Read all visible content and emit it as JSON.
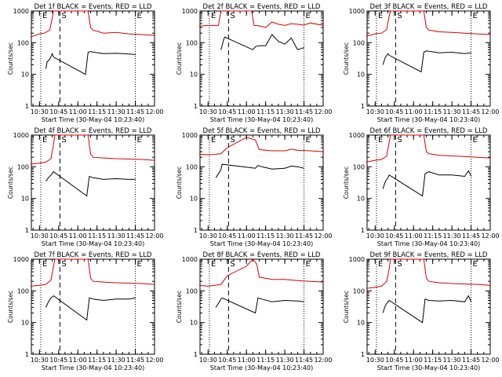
{
  "chart_data": [
    {
      "type": "line",
      "title": "Det 1f BLACK = Events, RED = LLD",
      "xlabel": "Start Time (30-May-04 10:23:40)",
      "ylabel": "Counts/sec",
      "y_scale": "log",
      "ylim": [
        1,
        1000
      ],
      "y_ticks": [
        "1",
        "10",
        "100",
        "1000"
      ],
      "x_ticks": [
        "10:30",
        "10:45",
        "11:00",
        "11:15",
        "11:30",
        "11:45",
        "12:00"
      ],
      "x_range": [
        "10:23:40",
        "12:00:00"
      ],
      "markers": [
        {
          "label": "E",
          "time": "10:31"
        },
        {
          "label": "S",
          "time": "10:46"
        },
        {
          "label": "E",
          "time": "11:45"
        }
      ],
      "series": [
        {
          "name": "Events",
          "color": "#000000",
          "x": [
            "10:35",
            "10:36",
            "10:38",
            "10:40",
            "10:41",
            "11:06",
            "11:08",
            "11:10",
            "11:20",
            "11:30",
            "11:40",
            "11:45"
          ],
          "y": [
            15,
            25,
            30,
            45,
            35,
            10,
            50,
            52,
            45,
            46,
            44,
            42
          ]
        },
        {
          "name": "LLD",
          "color": "#dd0000",
          "x": [
            "10:23",
            "10:30",
            "10:34",
            "10:38",
            "10:40",
            "10:41",
            "10:42",
            "11:08",
            "11:10",
            "11:12",
            "11:20",
            "11:30",
            "11:40",
            "11:50",
            "12:00"
          ],
          "y": [
            150,
            190,
            200,
            250,
            600,
            1000,
            1000,
            1000,
            300,
            250,
            200,
            210,
            190,
            180,
            170
          ]
        }
      ]
    },
    {
      "type": "line",
      "title": "Det 2f BLACK = Events, RED = LLD",
      "xlabel": "Start Time (30-May-04 10:23:40)",
      "ylabel": "Counts/sec",
      "y_scale": "log",
      "ylim": [
        1,
        1000
      ],
      "y_ticks": [
        "1",
        "10",
        "100",
        "1000"
      ],
      "x_ticks": [
        "10:30",
        "10:45",
        "11:00",
        "11:15",
        "11:30",
        "11:45",
        "12:00"
      ],
      "x_range": [
        "10:23:40",
        "12:00:00"
      ],
      "markers": [
        {
          "label": "E",
          "time": "10:31"
        },
        {
          "label": "S",
          "time": "10:46"
        },
        {
          "label": "E",
          "time": "11:45"
        }
      ],
      "series": [
        {
          "name": "Events",
          "color": "#000000",
          "x": [
            "10:40",
            "10:41",
            "10:42",
            "10:43",
            "11:05",
            "11:07",
            "11:10",
            "11:15",
            "11:20",
            "11:25",
            "11:30",
            "11:35",
            "11:40",
            "11:45"
          ],
          "y": [
            60,
            80,
            120,
            150,
            60,
            75,
            80,
            80,
            180,
            110,
            90,
            140,
            60,
            70
          ]
        },
        {
          "name": "LLD",
          "color": "#dd0000",
          "x": [
            "10:23",
            "10:30",
            "10:38",
            "10:40",
            "10:41",
            "11:04",
            "11:06",
            "11:10",
            "11:15",
            "11:20",
            "11:25",
            "11:30",
            "11:35",
            "11:40",
            "11:45",
            "11:50",
            "12:00"
          ],
          "y": [
            330,
            350,
            350,
            1000,
            1000,
            1000,
            350,
            340,
            300,
            450,
            380,
            350,
            400,
            380,
            360,
            420,
            350
          ]
        }
      ]
    },
    {
      "type": "line",
      "title": "Det 3f BLACK = Events, RED = LLD",
      "xlabel": "Start Time (30-May-04 10:23:40)",
      "ylabel": "Counts/sec",
      "y_scale": "log",
      "ylim": [
        1,
        1000
      ],
      "y_ticks": [
        "1",
        "10",
        "100",
        "1000"
      ],
      "x_ticks": [
        "10:30",
        "10:45",
        "11:00",
        "11:15",
        "11:30",
        "11:45",
        "12:00"
      ],
      "x_range": [
        "10:23:40",
        "12:00:00"
      ],
      "markers": [
        {
          "label": "E",
          "time": "10:31"
        },
        {
          "label": "S",
          "time": "10:46"
        },
        {
          "label": "E",
          "time": "11:45"
        }
      ],
      "series": [
        {
          "name": "Events",
          "color": "#000000",
          "x": [
            "10:36",
            "10:38",
            "10:40",
            "10:41",
            "11:06",
            "11:08",
            "11:10",
            "11:20",
            "11:30",
            "11:40",
            "11:45"
          ],
          "y": [
            20,
            35,
            45,
            40,
            12,
            50,
            55,
            48,
            50,
            45,
            48
          ]
        },
        {
          "name": "LLD",
          "color": "#dd0000",
          "x": [
            "10:23",
            "10:30",
            "10:35",
            "10:39",
            "10:41",
            "10:42",
            "11:08",
            "11:10",
            "11:12",
            "11:20",
            "11:30",
            "11:40",
            "11:50",
            "12:00"
          ],
          "y": [
            160,
            190,
            200,
            260,
            700,
            1000,
            1000,
            300,
            250,
            220,
            210,
            200,
            190,
            180
          ]
        }
      ]
    },
    {
      "type": "line",
      "title": "Det 4f BLACK = Events, RED = LLD",
      "xlabel": "Start Time (30-May-04 10:23:40)",
      "ylabel": "Counts/sec",
      "y_scale": "log",
      "ylim": [
        1,
        1000
      ],
      "y_ticks": [
        "1",
        "10",
        "100",
        "1000"
      ],
      "x_ticks": [
        "10:30",
        "10:45",
        "11:00",
        "11:15",
        "11:30",
        "11:45",
        "12:00"
      ],
      "x_range": [
        "10:23:40",
        "12:00:00"
      ],
      "markers": [
        {
          "label": "E",
          "time": "10:31"
        },
        {
          "label": "S",
          "time": "10:46"
        },
        {
          "label": "E",
          "time": "11:45"
        }
      ],
      "series": [
        {
          "name": "Events",
          "color": "#000000",
          "x": [
            "10:35",
            "10:37",
            "10:39",
            "10:41",
            "11:07",
            "11:09",
            "11:12",
            "11:20",
            "11:30",
            "11:40",
            "11:45"
          ],
          "y": [
            35,
            45,
            55,
            70,
            12,
            50,
            45,
            40,
            42,
            40,
            40
          ]
        },
        {
          "name": "LLD",
          "color": "#dd0000",
          "x": [
            "10:23",
            "10:30",
            "10:35",
            "10:39",
            "10:41",
            "10:42",
            "11:08",
            "11:10",
            "11:12",
            "11:20",
            "11:30",
            "11:40",
            "11:50",
            "12:00"
          ],
          "y": [
            120,
            130,
            140,
            180,
            500,
            1000,
            1000,
            250,
            200,
            190,
            180,
            175,
            170,
            160
          ]
        }
      ]
    },
    {
      "type": "line",
      "title": "Det 5f BLACK = Events, RED = LLD",
      "xlabel": "Start Time (30-May-04 10:23:40)",
      "ylabel": "Counts/sec",
      "y_scale": "log",
      "ylim": [
        1,
        1000
      ],
      "y_ticks": [
        "1",
        "10",
        "100",
        "1000"
      ],
      "x_ticks": [
        "10:30",
        "10:45",
        "11:00",
        "11:15",
        "11:30",
        "11:45",
        "12:00"
      ],
      "x_range": [
        "10:23:40",
        "12:00:00"
      ],
      "markers": [
        {
          "label": "E",
          "time": "10:31"
        },
        {
          "label": "S",
          "time": "10:46"
        },
        {
          "label": "E",
          "time": "11:45"
        }
      ],
      "series": [
        {
          "name": "Events",
          "color": "#000000",
          "x": [
            "10:36",
            "10:38",
            "10:40",
            "10:41",
            "11:07",
            "11:09",
            "11:12",
            "11:20",
            "11:30",
            "11:35",
            "11:40",
            "11:45"
          ],
          "y": [
            45,
            60,
            80,
            120,
            90,
            110,
            100,
            85,
            90,
            105,
            100,
            90
          ]
        },
        {
          "name": "LLD",
          "color": "#dd0000",
          "x": [
            "10:23",
            "10:30",
            "10:35",
            "10:40",
            "10:45",
            "11:00",
            "11:07",
            "11:10",
            "11:20",
            "11:30",
            "11:35",
            "11:40",
            "11:50",
            "12:00"
          ],
          "y": [
            250,
            240,
            245,
            260,
            400,
            850,
            700,
            350,
            320,
            320,
            360,
            330,
            320,
            300
          ]
        }
      ]
    },
    {
      "type": "line",
      "title": "Det 6f BLACK = Events, RED = LLD",
      "xlabel": "Start Time (30-May-04 10:23:40)",
      "ylabel": "Counts/sec",
      "y_scale": "log",
      "ylim": [
        1,
        1000
      ],
      "y_ticks": [
        "1",
        "10",
        "100",
        "1000"
      ],
      "x_ticks": [
        "10:30",
        "10:45",
        "11:00",
        "11:15",
        "11:30",
        "11:45",
        "12:00"
      ],
      "x_range": [
        "10:23:40",
        "12:00:00"
      ],
      "markers": [
        {
          "label": "E",
          "time": "10:31"
        },
        {
          "label": "S",
          "time": "10:46"
        },
        {
          "label": "E",
          "time": "11:45"
        }
      ],
      "series": [
        {
          "name": "Events",
          "color": "#000000",
          "x": [
            "10:36",
            "10:38",
            "10:40",
            "10:41",
            "11:07",
            "11:09",
            "11:12",
            "11:20",
            "11:30",
            "11:40",
            "11:43",
            "11:45"
          ],
          "y": [
            20,
            35,
            45,
            55,
            12,
            60,
            70,
            55,
            55,
            50,
            75,
            50
          ]
        },
        {
          "name": "LLD",
          "color": "#dd0000",
          "x": [
            "10:23",
            "10:30",
            "10:35",
            "10:39",
            "10:41",
            "10:42",
            "11:08",
            "11:10",
            "11:12",
            "11:20",
            "11:30",
            "11:40",
            "11:50",
            "12:00"
          ],
          "y": [
            140,
            160,
            170,
            220,
            600,
            1000,
            1000,
            300,
            260,
            230,
            220,
            210,
            200,
            190
          ]
        }
      ]
    },
    {
      "type": "line",
      "title": "Det 7f BLACK = Events, RED = LLD",
      "xlabel": "Start Time (30-May-04 10:23:40)",
      "ylabel": "Counts/sec",
      "y_scale": "log",
      "ylim": [
        1,
        1000
      ],
      "y_ticks": [
        "1",
        "10",
        "100",
        "1000"
      ],
      "x_ticks": [
        "10:30",
        "10:45",
        "11:00",
        "11:15",
        "11:30",
        "11:45",
        "12:00"
      ],
      "x_range": [
        "10:23:40",
        "12:00:00"
      ],
      "markers": [
        {
          "label": "E",
          "time": "10:31"
        },
        {
          "label": "S",
          "time": "10:46"
        },
        {
          "label": "E",
          "time": "11:45"
        }
      ],
      "series": [
        {
          "name": "Events",
          "color": "#000000",
          "x": [
            "10:35",
            "10:37",
            "10:39",
            "10:41",
            "11:07",
            "11:09",
            "11:12",
            "11:20",
            "11:30",
            "11:40",
            "11:45"
          ],
          "y": [
            30,
            45,
            60,
            70,
            12,
            60,
            55,
            50,
            55,
            55,
            60
          ]
        },
        {
          "name": "LLD",
          "color": "#dd0000",
          "x": [
            "10:23",
            "10:30",
            "10:35",
            "10:39",
            "10:41",
            "10:42",
            "11:08",
            "11:10",
            "11:12",
            "11:20",
            "11:30",
            "11:40",
            "11:50",
            "12:00"
          ],
          "y": [
            140,
            150,
            160,
            220,
            600,
            1000,
            1000,
            250,
            200,
            190,
            180,
            175,
            170,
            160
          ]
        }
      ]
    },
    {
      "type": "line",
      "title": "Det 8f BLACK = Events, RED = LLD",
      "xlabel": "Start Time (30-May-04 10:23:40)",
      "ylabel": "Counts/sec",
      "y_scale": "log",
      "ylim": [
        1,
        1000
      ],
      "y_ticks": [
        "1",
        "10",
        "100",
        "1000"
      ],
      "x_ticks": [
        "10:30",
        "10:45",
        "11:00",
        "11:15",
        "11:30",
        "11:45",
        "12:00"
      ],
      "x_range": [
        "10:23:40",
        "12:00:00"
      ],
      "markers": [
        {
          "label": "E",
          "time": "10:31"
        },
        {
          "label": "S",
          "time": "10:46"
        },
        {
          "label": "E",
          "time": "11:45"
        }
      ],
      "series": [
        {
          "name": "Events",
          "color": "#000000",
          "x": [
            "10:36",
            "10:38",
            "10:40",
            "10:41",
            "11:07",
            "11:09",
            "11:12",
            "11:20",
            "11:30",
            "11:40",
            "11:45"
          ],
          "y": [
            30,
            40,
            55,
            60,
            20,
            60,
            55,
            45,
            50,
            48,
            45
          ]
        },
        {
          "name": "LLD",
          "color": "#dd0000",
          "x": [
            "10:23",
            "10:30",
            "10:35",
            "10:40",
            "10:45",
            "11:00",
            "11:05",
            "11:08",
            "11:10",
            "11:20",
            "11:30",
            "11:40",
            "11:50",
            "12:00"
          ],
          "y": [
            150,
            140,
            150,
            160,
            300,
            600,
            1000,
            700,
            270,
            230,
            230,
            210,
            200,
            190
          ]
        }
      ]
    },
    {
      "type": "line",
      "title": "Det 9f BLACK = Events, RED = LLD",
      "xlabel": "Start Time (30-May-04 10:23:40)",
      "ylabel": "Counts/sec",
      "y_scale": "log",
      "ylim": [
        1,
        1000
      ],
      "y_ticks": [
        "1",
        "10",
        "100",
        "1000"
      ],
      "x_ticks": [
        "10:30",
        "10:45",
        "11:00",
        "11:15",
        "11:30",
        "11:45",
        "12:00"
      ],
      "x_range": [
        "10:23:40",
        "12:00:00"
      ],
      "markers": [
        {
          "label": "E",
          "time": "10:31"
        },
        {
          "label": "S",
          "time": "10:46"
        },
        {
          "label": "E",
          "time": "11:45"
        }
      ],
      "series": [
        {
          "name": "Events",
          "color": "#000000",
          "x": [
            "10:36",
            "10:38",
            "10:40",
            "10:41",
            "11:07",
            "11:09",
            "11:12",
            "11:20",
            "11:30",
            "11:40",
            "11:43",
            "11:45"
          ],
          "y": [
            20,
            35,
            45,
            50,
            10,
            55,
            50,
            48,
            50,
            45,
            70,
            45
          ]
        },
        {
          "name": "LLD",
          "color": "#dd0000",
          "x": [
            "10:23",
            "10:30",
            "10:35",
            "10:39",
            "10:41",
            "10:42",
            "11:08",
            "11:10",
            "11:12",
            "11:20",
            "11:30",
            "11:40",
            "11:50",
            "12:00"
          ],
          "y": [
            120,
            130,
            140,
            200,
            500,
            1000,
            1000,
            250,
            200,
            180,
            170,
            165,
            160,
            150
          ]
        }
      ]
    }
  ]
}
